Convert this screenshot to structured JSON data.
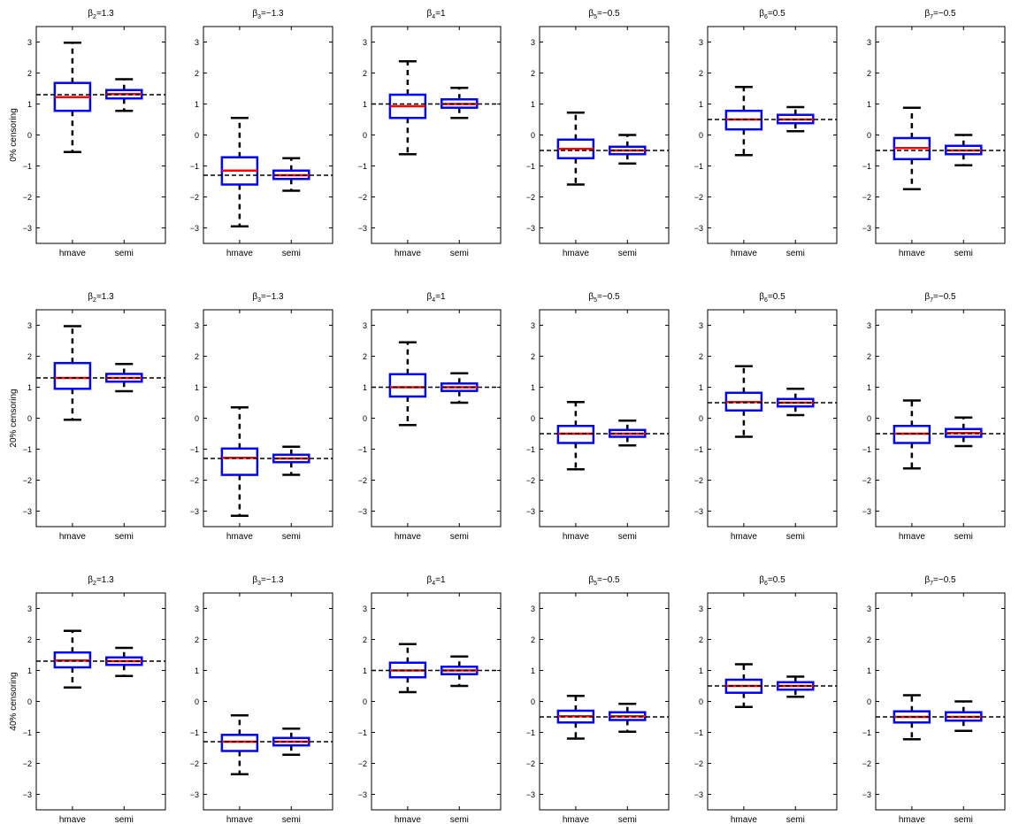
{
  "row_labels": [
    "0% censoring",
    "20% censoring",
    "40% censoring"
  ],
  "panel_titles": [
    {
      "sub": "2",
      "rest": "=1.3"
    },
    {
      "sub": "3",
      "rest": "=−1.3"
    },
    {
      "sub": "4",
      "rest": "=1"
    },
    {
      "sub": "5",
      "rest": "=−0.5"
    },
    {
      "sub": "6",
      "rest": "=0.5"
    },
    {
      "sub": "7",
      "rest": "=−0.5"
    }
  ],
  "chart_data": {
    "type": "boxplot",
    "categories": [
      "hmave",
      "semi"
    ],
    "ylim": [
      -3.5,
      3.5
    ],
    "yticks": [
      -3,
      -2,
      -1,
      0,
      1,
      2,
      3
    ],
    "ytick_labels": [
      "−3",
      "−2",
      "−1",
      "0",
      "1",
      "2",
      "3"
    ],
    "true_values": [
      1.3,
      -1.3,
      1,
      -0.5,
      0.5,
      -0.5
    ],
    "colors": {
      "box": "#0000ff",
      "median": "#ff0000",
      "whisker": "#000000",
      "reference": "#000000"
    },
    "rows": [
      {
        "censoring": "0% censoring",
        "panels": [
          {
            "boxes": [
              {
                "label": "hmave",
                "whisker_low": -0.55,
                "q1": 0.78,
                "median": 1.22,
                "q3": 1.68,
                "whisker_high": 2.98
              },
              {
                "label": "semi",
                "whisker_low": 0.78,
                "q1": 1.18,
                "median": 1.32,
                "q3": 1.45,
                "whisker_high": 1.8
              }
            ]
          },
          {
            "boxes": [
              {
                "label": "hmave",
                "whisker_low": -2.95,
                "q1": -1.6,
                "median": -1.15,
                "q3": -0.72,
                "whisker_high": 0.55
              },
              {
                "label": "semi",
                "whisker_low": -1.8,
                "q1": -1.42,
                "median": -1.3,
                "q3": -1.15,
                "whisker_high": -0.75
              }
            ]
          },
          {
            "boxes": [
              {
                "label": "hmave",
                "whisker_low": -0.62,
                "q1": 0.55,
                "median": 0.93,
                "q3": 1.3,
                "whisker_high": 2.38
              },
              {
                "label": "semi",
                "whisker_low": 0.55,
                "q1": 0.88,
                "median": 1.0,
                "q3": 1.15,
                "whisker_high": 1.52
              }
            ]
          },
          {
            "boxes": [
              {
                "label": "hmave",
                "whisker_low": -1.6,
                "q1": -0.75,
                "median": -0.45,
                "q3": -0.15,
                "whisker_high": 0.72
              },
              {
                "label": "semi",
                "whisker_low": -0.92,
                "q1": -0.62,
                "median": -0.5,
                "q3": -0.38,
                "whisker_high": 0.0
              }
            ]
          },
          {
            "boxes": [
              {
                "label": "hmave",
                "whisker_low": -0.65,
                "q1": 0.18,
                "median": 0.5,
                "q3": 0.78,
                "whisker_high": 1.55
              },
              {
                "label": "semi",
                "whisker_low": 0.12,
                "q1": 0.38,
                "median": 0.5,
                "q3": 0.65,
                "whisker_high": 0.9
              }
            ]
          },
          {
            "boxes": [
              {
                "label": "hmave",
                "whisker_low": -1.75,
                "q1": -0.78,
                "median": -0.42,
                "q3": -0.1,
                "whisker_high": 0.88
              },
              {
                "label": "semi",
                "whisker_low": -0.98,
                "q1": -0.62,
                "median": -0.5,
                "q3": -0.35,
                "whisker_high": 0.0
              }
            ]
          }
        ]
      },
      {
        "censoring": "20% censoring",
        "panels": [
          {
            "boxes": [
              {
                "label": "hmave",
                "whisker_low": -0.05,
                "q1": 0.95,
                "median": 1.3,
                "q3": 1.78,
                "whisker_high": 2.97
              },
              {
                "label": "semi",
                "whisker_low": 0.87,
                "q1": 1.18,
                "median": 1.3,
                "q3": 1.43,
                "whisker_high": 1.75
              }
            ]
          },
          {
            "boxes": [
              {
                "label": "hmave",
                "whisker_low": -3.15,
                "q1": -1.83,
                "median": -1.28,
                "q3": -0.98,
                "whisker_high": 0.35
              },
              {
                "label": "semi",
                "whisker_low": -1.83,
                "q1": -1.42,
                "median": -1.3,
                "q3": -1.18,
                "whisker_high": -0.92
              }
            ]
          },
          {
            "boxes": [
              {
                "label": "hmave",
                "whisker_low": -0.22,
                "q1": 0.7,
                "median": 1.0,
                "q3": 1.42,
                "whisker_high": 2.45
              },
              {
                "label": "semi",
                "whisker_low": 0.5,
                "q1": 0.88,
                "median": 1.0,
                "q3": 1.12,
                "whisker_high": 1.45
              }
            ]
          },
          {
            "boxes": [
              {
                "label": "hmave",
                "whisker_low": -1.65,
                "q1": -0.8,
                "median": -0.5,
                "q3": -0.25,
                "whisker_high": 0.52
              },
              {
                "label": "semi",
                "whisker_low": -0.88,
                "q1": -0.6,
                "median": -0.5,
                "q3": -0.38,
                "whisker_high": -0.08
              }
            ]
          },
          {
            "boxes": [
              {
                "label": "hmave",
                "whisker_low": -0.6,
                "q1": 0.25,
                "median": 0.52,
                "q3": 0.82,
                "whisker_high": 1.68
              },
              {
                "label": "semi",
                "whisker_low": 0.1,
                "q1": 0.38,
                "median": 0.5,
                "q3": 0.62,
                "whisker_high": 0.95
              }
            ]
          },
          {
            "boxes": [
              {
                "label": "hmave",
                "whisker_low": -1.62,
                "q1": -0.8,
                "median": -0.5,
                "q3": -0.25,
                "whisker_high": 0.57
              },
              {
                "label": "semi",
                "whisker_low": -0.9,
                "q1": -0.6,
                "median": -0.48,
                "q3": -0.35,
                "whisker_high": 0.02
              }
            ]
          }
        ]
      },
      {
        "censoring": "40% censoring",
        "panels": [
          {
            "boxes": [
              {
                "label": "hmave",
                "whisker_low": 0.45,
                "q1": 1.1,
                "median": 1.32,
                "q3": 1.58,
                "whisker_high": 2.28
              },
              {
                "label": "semi",
                "whisker_low": 0.82,
                "q1": 1.18,
                "median": 1.3,
                "q3": 1.42,
                "whisker_high": 1.73
              }
            ]
          },
          {
            "boxes": [
              {
                "label": "hmave",
                "whisker_low": -2.35,
                "q1": -1.6,
                "median": -1.3,
                "q3": -1.08,
                "whisker_high": -0.45
              },
              {
                "label": "semi",
                "whisker_low": -1.72,
                "q1": -1.42,
                "median": -1.3,
                "q3": -1.18,
                "whisker_high": -0.88
              }
            ]
          },
          {
            "boxes": [
              {
                "label": "hmave",
                "whisker_low": 0.3,
                "q1": 0.78,
                "median": 1.0,
                "q3": 1.25,
                "whisker_high": 1.85
              },
              {
                "label": "semi",
                "whisker_low": 0.5,
                "q1": 0.88,
                "median": 1.0,
                "q3": 1.12,
                "whisker_high": 1.45
              }
            ]
          },
          {
            "boxes": [
              {
                "label": "hmave",
                "whisker_low": -1.2,
                "q1": -0.68,
                "median": -0.48,
                "q3": -0.3,
                "whisker_high": 0.18
              },
              {
                "label": "semi",
                "whisker_low": -0.98,
                "q1": -0.6,
                "median": -0.48,
                "q3": -0.35,
                "whisker_high": -0.08
              }
            ]
          },
          {
            "boxes": [
              {
                "label": "hmave",
                "whisker_low": -0.18,
                "q1": 0.28,
                "median": 0.5,
                "q3": 0.7,
                "whisker_high": 1.2
              },
              {
                "label": "semi",
                "whisker_low": 0.15,
                "q1": 0.38,
                "median": 0.5,
                "q3": 0.62,
                "whisker_high": 0.8
              }
            ]
          },
          {
            "boxes": [
              {
                "label": "hmave",
                "whisker_low": -1.22,
                "q1": -0.68,
                "median": -0.5,
                "q3": -0.32,
                "whisker_high": 0.2
              },
              {
                "label": "semi",
                "whisker_low": -0.95,
                "q1": -0.62,
                "median": -0.5,
                "q3": -0.35,
                "whisker_high": 0.0
              }
            ]
          }
        ]
      }
    ]
  }
}
